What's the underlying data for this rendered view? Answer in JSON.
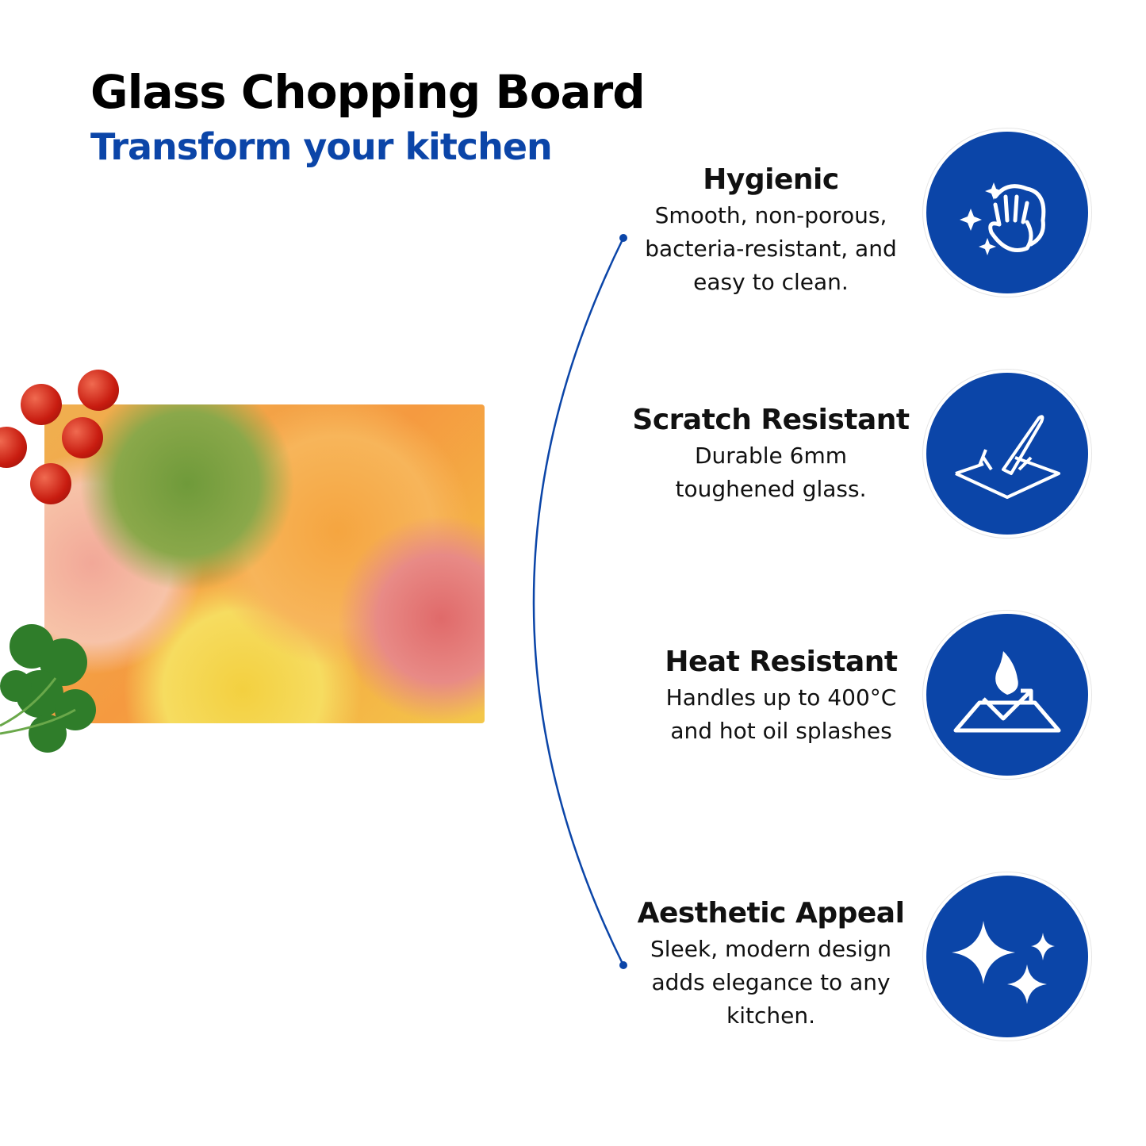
{
  "header": {
    "title": "Glass Chopping Board",
    "subtitle": "Transform your kitchen"
  },
  "colors": {
    "accent": "#0b45a8",
    "text": "#111111"
  },
  "features": [
    {
      "title": "Hygienic",
      "lines": [
        "Smooth, non-porous,",
        "bacteria-resistant, and",
        "easy to clean."
      ],
      "icon": "hand-wipe-sparkle-icon"
    },
    {
      "title": "Scratch Resistant",
      "lines": [
        "Durable 6mm",
        "toughened glass."
      ],
      "icon": "knife-on-glass-icon"
    },
    {
      "title": "Heat Resistant",
      "lines": [
        "Handles up to 400°C",
        "and hot oil splashes"
      ],
      "icon": "flame-on-surface-icon"
    },
    {
      "title": "Aesthetic Appeal",
      "lines": [
        "Sleek, modern design",
        "adds elegance to any",
        "kitchen."
      ],
      "icon": "sparkles-icon"
    }
  ]
}
